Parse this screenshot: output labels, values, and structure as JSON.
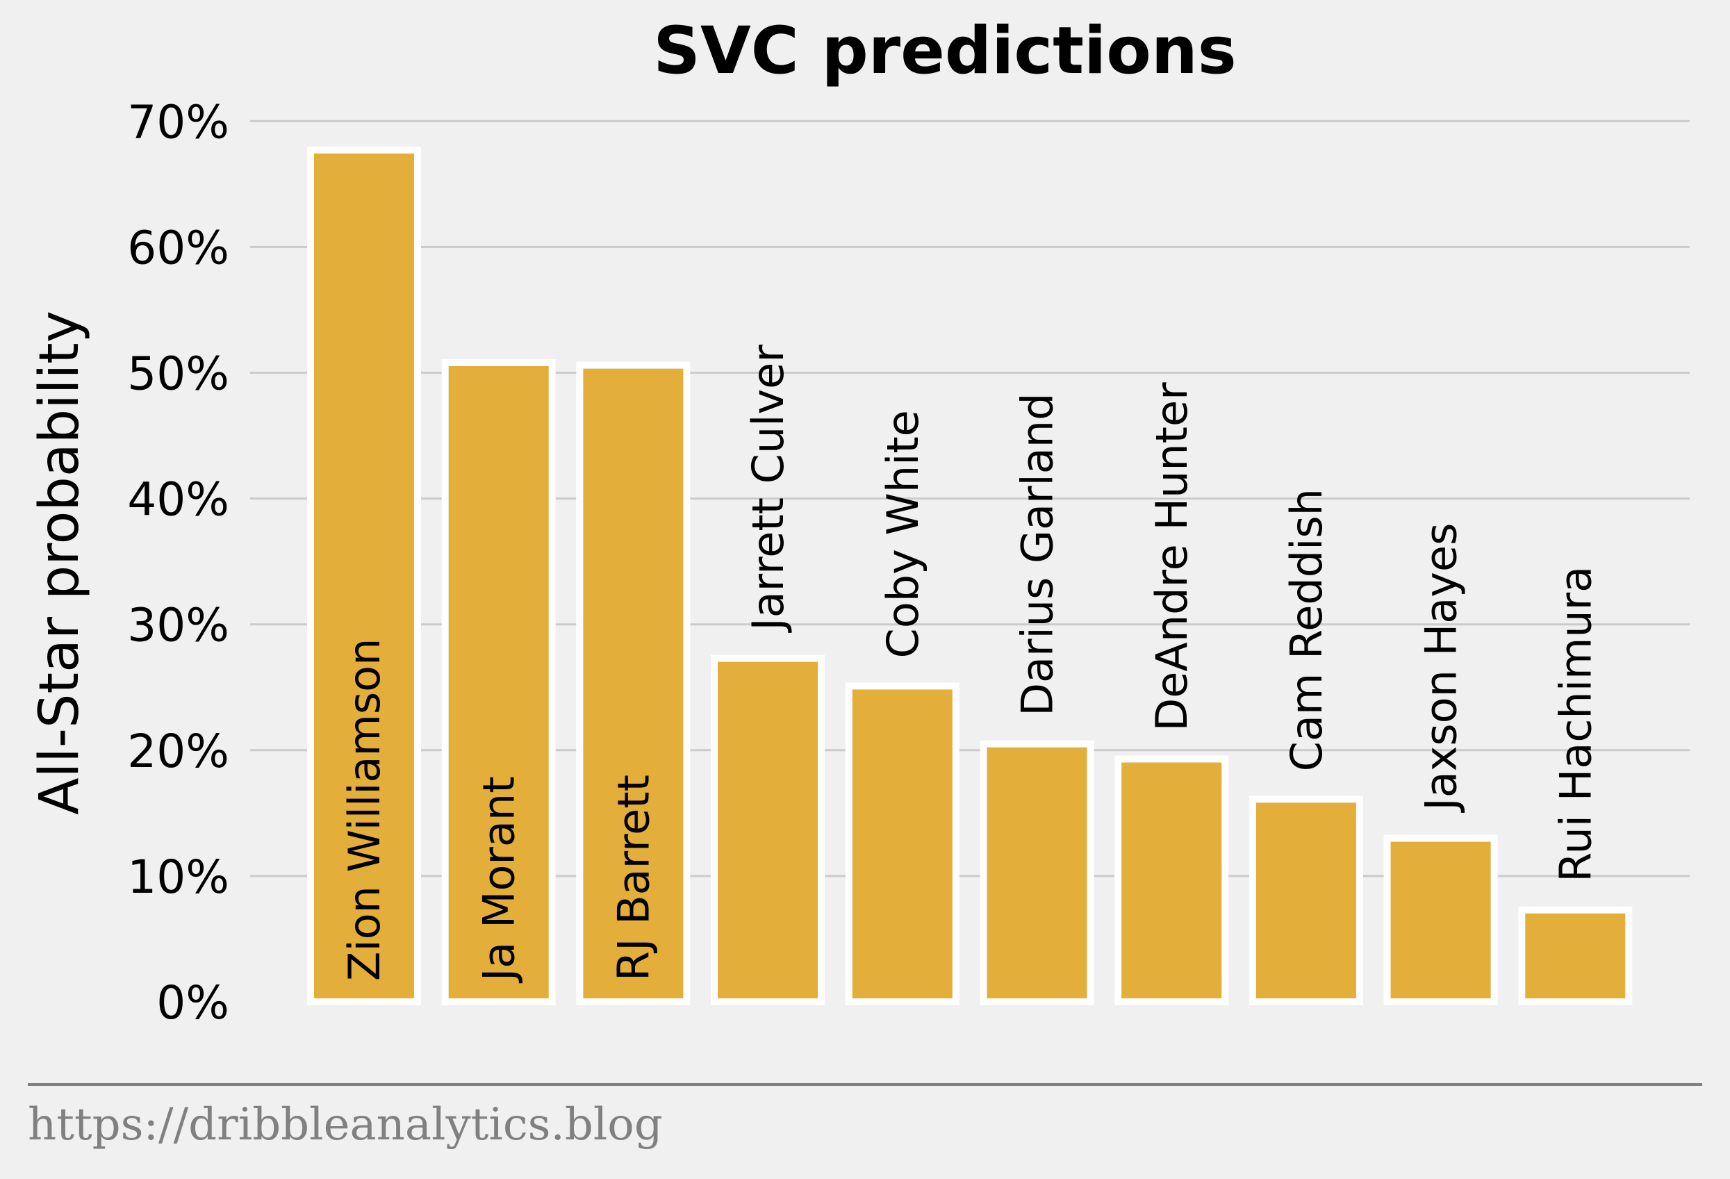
{
  "chart_data": {
    "type": "bar",
    "title": "SVC predictions",
    "xlabel": "",
    "ylabel": "All-Star probability",
    "ylim": [
      0,
      70
    ],
    "yticks": [
      "0%",
      "10%",
      "20%",
      "30%",
      "40%",
      "50%",
      "60%",
      "70%"
    ],
    "categories": [
      "Zion Williamson",
      "Ja Morant",
      "RJ Barrett",
      "Jarrett Culver",
      "Coby White",
      "Darius Garland",
      "DeAndre Hunter",
      "Cam Reddish",
      "Jaxson Hayes",
      "Rui Hachimura"
    ],
    "values": [
      67.7,
      50.8,
      50.6,
      27.3,
      25.1,
      20.5,
      19.3,
      16.1,
      13.0,
      7.3
    ],
    "grid": "horizontal",
    "bar_color": "#e3ae3a",
    "bar_edge_color": "#ffffff",
    "grid_color": "#cbcbcb",
    "background_color": "#f0f0f0"
  },
  "footer": {
    "source": "https://dribbleanalytics.blog"
  }
}
